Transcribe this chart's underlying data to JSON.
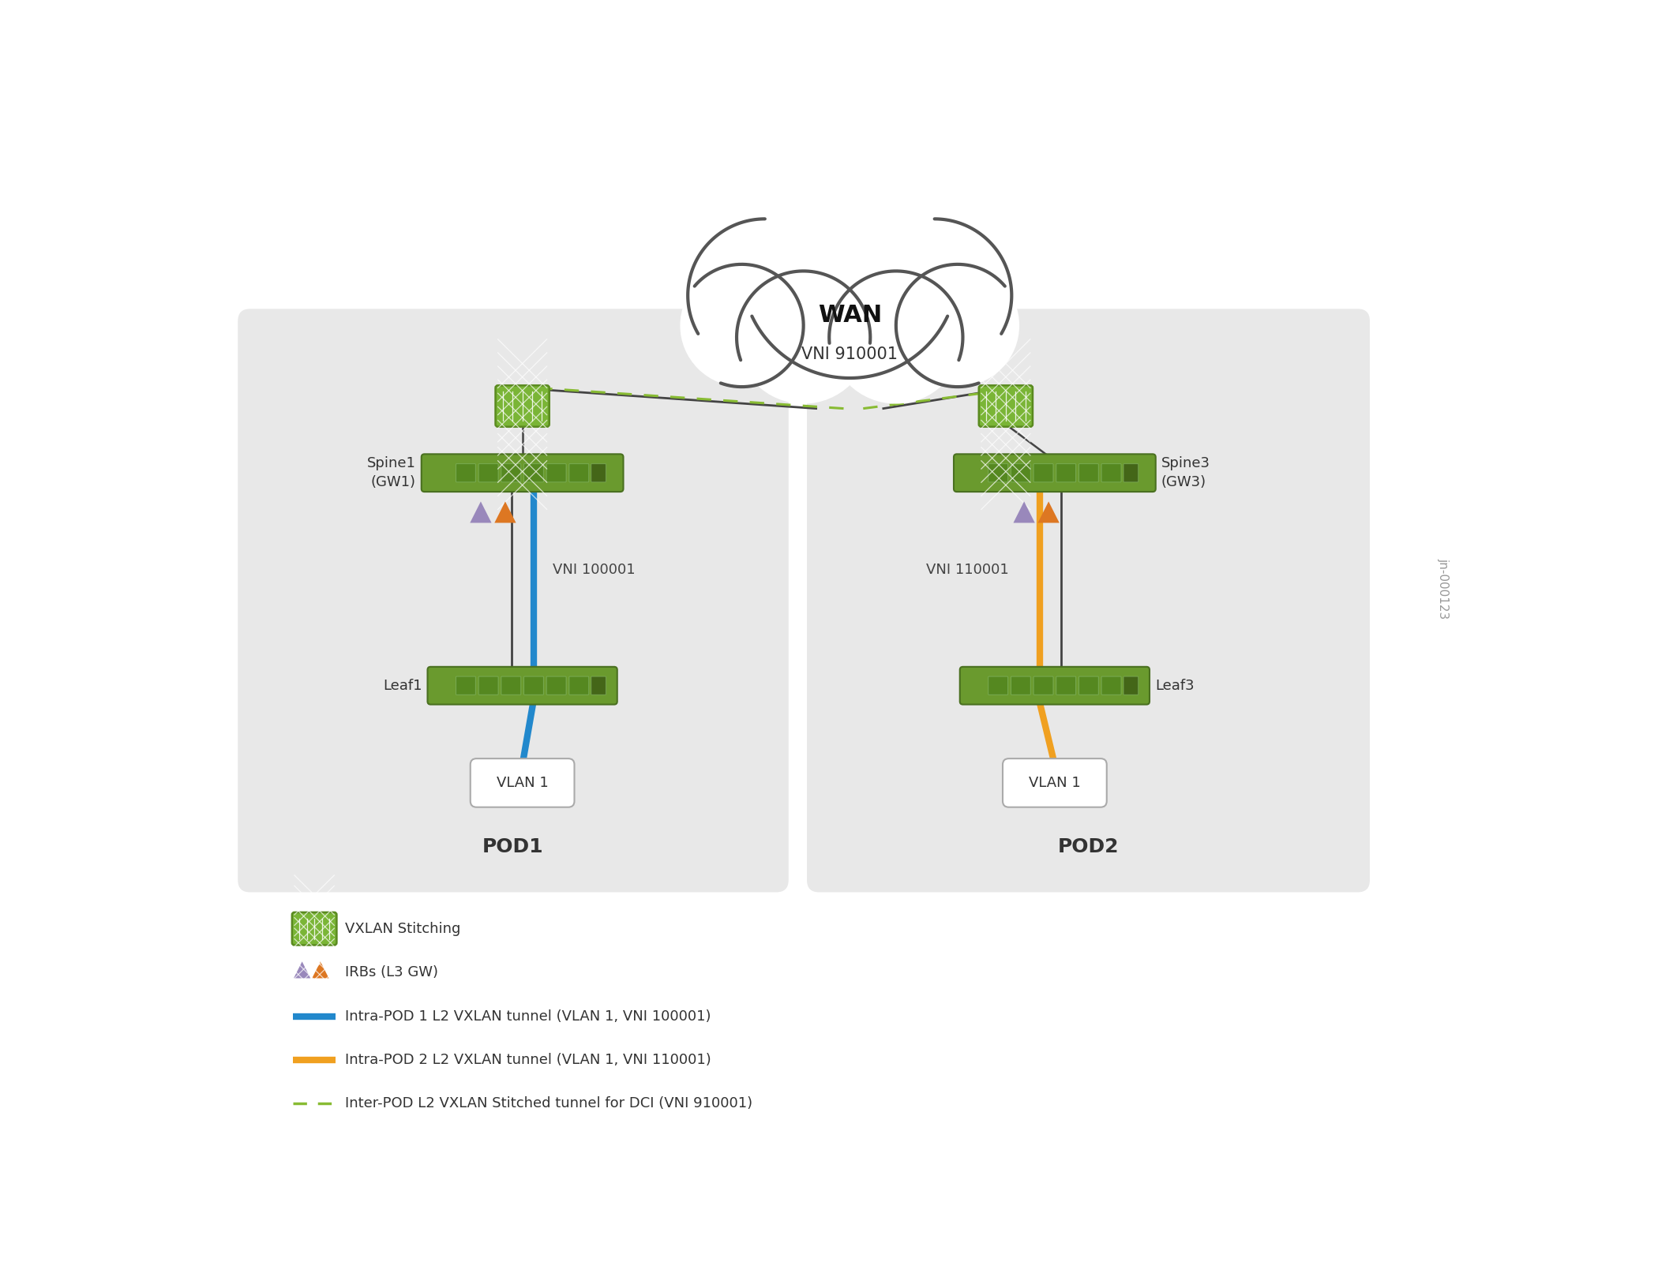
{
  "bg_color": "#ffffff",
  "pod_bg_color": "#e8e8e8",
  "cloud_stroke": "#555555",
  "wan_label": "WAN",
  "wan_vni": "VNI 910001",
  "pod1_label": "POD1",
  "pod2_label": "POD2",
  "spine1_label": "Spine1\n(GW1)",
  "spine3_label": "Spine3\n(GW3)",
  "leaf1_label": "Leaf1",
  "leaf3_label": "Leaf3",
  "vlan1_label": "VLAN 1",
  "vni1_label": "VNI 100001",
  "vni2_label": "VNI 110001",
  "switch_color": "#6a9a2e",
  "switch_border": "#4a7020",
  "stitch_color": "#7ab536",
  "stitch_border": "#5a8a20",
  "blue_tunnel": "#2288cc",
  "orange_tunnel": "#f0a020",
  "green_dashed": "#88bb33",
  "gray_line": "#444444",
  "purple_tri": "#9988bb",
  "orange_tri": "#dd7722",
  "fig_id": "jn-000123",
  "legend_items": [
    "VXLAN Stitching",
    "IRBs (L3 GW)",
    "Intra-POD 1 L2 VXLAN tunnel (VLAN 1, VNI 100001)",
    "Intra-POD 2 L2 VXLAN tunnel (VLAN 1, VNI 110001)",
    "Inter-POD L2 VXLAN Stitched tunnel for DCI (VNI 910001)"
  ]
}
